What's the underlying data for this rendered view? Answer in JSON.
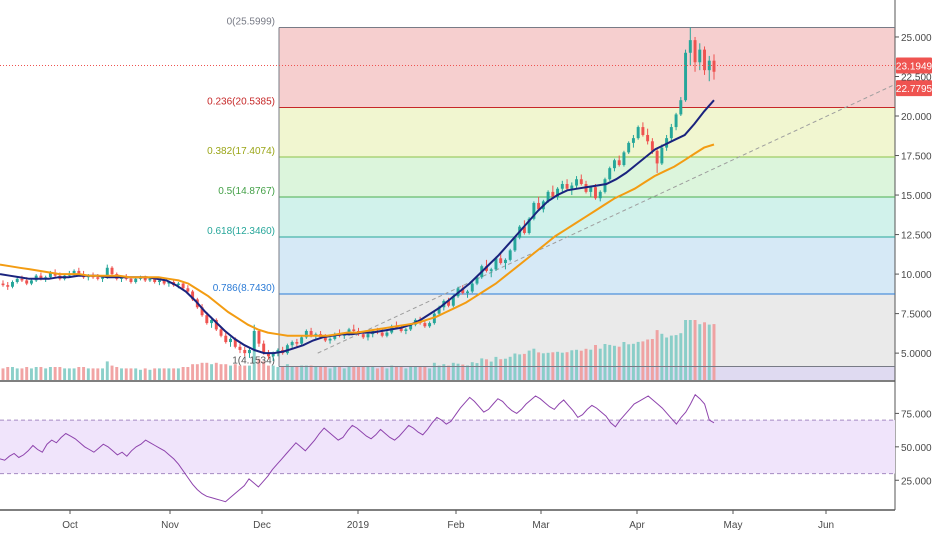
{
  "chart_data": [
    {
      "type": "candlestick",
      "instrument": "price",
      "y_axis": {
        "ticks": [
          "25.0000",
          "22.5000",
          "20.0000",
          "17.5000",
          "15.0000",
          "12.5000",
          "10.0000",
          "7.5000",
          "5.0000"
        ],
        "tick_values": [
          25,
          22.5,
          20,
          17.5,
          15,
          12.5,
          10,
          7.5,
          5
        ],
        "range": [
          3.3,
          26.2
        ]
      },
      "x_axis": {
        "labels": [
          "Oct",
          "Nov",
          "Dec",
          "2019",
          "Feb",
          "Mar",
          "Apr",
          "May",
          "Jun"
        ]
      },
      "price_tags": [
        {
          "text": "23.1949",
          "value": 23.1949,
          "color": "#ef5350"
        },
        {
          "text": "22.7795",
          "value": 22.7795,
          "color": "#ef5350"
        }
      ],
      "fibonacci": {
        "levels": [
          {
            "label": "0(25.5999)",
            "ratio": 0,
            "price": 25.5999,
            "line_color": "#787b86",
            "fill_color": "#f4c7c7",
            "label_color": "#787b86"
          },
          {
            "label": "0.236(20.5385)",
            "ratio": 0.236,
            "price": 20.5385,
            "line_color": "#c62828",
            "fill_color": "#eef4c8",
            "label_color": "#c62828"
          },
          {
            "label": "0.382(17.4074)",
            "ratio": 0.382,
            "price": 17.4074,
            "line_color": "#8bc34a",
            "fill_color": "#d6f3d6",
            "label_color": "#9aa517"
          },
          {
            "label": "0.5(14.8767)",
            "ratio": 0.5,
            "price": 14.8767,
            "line_color": "#4caf50",
            "fill_color": "#c9f0e8",
            "label_color": "#43a047"
          },
          {
            "label": "0.618(12.3460)",
            "ratio": 0.618,
            "price": 12.346,
            "line_color": "#26a69a",
            "fill_color": "#cfe5f5",
            "label_color": "#26a69a"
          },
          {
            "label": "0.786(8.7430)",
            "ratio": 0.786,
            "price": 8.743,
            "line_color": "#2b7bd6",
            "fill_color": "#e6e6e6",
            "label_color": "#2b7bd6"
          },
          {
            "label": "1(4.1534)",
            "ratio": 1,
            "price": 4.1534,
            "line_color": "#787b86",
            "fill_color": "#d9d3ef",
            "label_color": "#555555"
          }
        ]
      },
      "candles": [
        [
          9.4,
          9.6,
          9.2,
          9.3
        ],
        [
          9.3,
          9.5,
          9.0,
          9.2
        ],
        [
          9.2,
          9.6,
          9.1,
          9.5
        ],
        [
          9.5,
          9.8,
          9.4,
          9.7
        ],
        [
          9.7,
          9.9,
          9.5,
          9.6
        ],
        [
          9.6,
          9.8,
          9.3,
          9.4
        ],
        [
          9.4,
          9.7,
          9.3,
          9.6
        ],
        [
          9.6,
          10.0,
          9.5,
          9.9
        ],
        [
          9.9,
          10.1,
          9.6,
          9.7
        ],
        [
          9.7,
          9.9,
          9.5,
          9.8
        ],
        [
          9.8,
          10.2,
          9.7,
          10.1
        ],
        [
          10.1,
          10.3,
          9.8,
          9.9
        ],
        [
          9.9,
          10.1,
          9.6,
          9.7
        ],
        [
          9.7,
          10.0,
          9.6,
          9.9
        ],
        [
          9.9,
          10.2,
          9.8,
          10.0
        ],
        [
          10.0,
          10.3,
          9.9,
          10.2
        ],
        [
          10.2,
          10.4,
          9.9,
          10.0
        ],
        [
          10.0,
          10.2,
          9.7,
          9.8
        ],
        [
          9.8,
          10.0,
          9.6,
          9.9
        ],
        [
          9.9,
          10.1,
          9.7,
          9.8
        ],
        [
          9.8,
          10.0,
          9.6,
          9.7
        ],
        [
          9.7,
          9.9,
          9.5,
          9.8
        ],
        [
          9.8,
          10.6,
          9.7,
          10.4
        ],
        [
          10.4,
          10.5,
          9.9,
          10.0
        ],
        [
          10.0,
          10.1,
          9.6,
          9.7
        ],
        [
          9.7,
          9.9,
          9.5,
          9.8
        ],
        [
          9.8,
          10.0,
          9.6,
          9.7
        ],
        [
          9.7,
          9.8,
          9.4,
          9.5
        ],
        [
          9.5,
          9.8,
          9.4,
          9.7
        ],
        [
          9.7,
          9.9,
          9.6,
          9.8
        ],
        [
          9.8,
          9.9,
          9.5,
          9.6
        ],
        [
          9.6,
          9.8,
          9.5,
          9.7
        ],
        [
          9.7,
          9.8,
          9.4,
          9.5
        ],
        [
          9.5,
          9.7,
          9.3,
          9.6
        ],
        [
          9.6,
          9.7,
          9.3,
          9.4
        ],
        [
          9.4,
          9.6,
          9.2,
          9.5
        ],
        [
          9.5,
          9.6,
          9.2,
          9.3
        ],
        [
          9.3,
          9.5,
          9.1,
          9.4
        ],
        [
          9.4,
          9.5,
          9.0,
          9.1
        ],
        [
          9.1,
          9.3,
          8.8,
          8.9
        ],
        [
          8.9,
          9.0,
          8.3,
          8.4
        ],
        [
          8.4,
          8.5,
          7.8,
          7.9
        ],
        [
          7.9,
          8.1,
          7.3,
          7.4
        ],
        [
          7.4,
          7.6,
          6.8,
          6.9
        ],
        [
          6.9,
          7.3,
          6.6,
          7.1
        ],
        [
          7.1,
          7.2,
          6.4,
          6.5
        ],
        [
          6.5,
          6.7,
          6.0,
          6.1
        ],
        [
          6.1,
          6.3,
          5.6,
          5.7
        ],
        [
          5.7,
          6.0,
          5.4,
          5.9
        ],
        [
          5.9,
          6.0,
          5.3,
          5.4
        ],
        [
          5.4,
          5.6,
          5.0,
          5.2
        ],
        [
          5.2,
          5.4,
          4.8,
          5.0
        ],
        [
          5.0,
          5.3,
          4.7,
          5.2
        ],
        [
          5.2,
          6.8,
          5.1,
          6.4
        ],
        [
          6.4,
          6.5,
          5.4,
          5.6
        ],
        [
          5.6,
          5.8,
          4.9,
          5.0
        ],
        [
          5.0,
          5.2,
          4.6,
          4.8
        ],
        [
          4.8,
          5.1,
          4.5,
          5.0
        ],
        [
          5.0,
          5.3,
          4.8,
          5.2
        ],
        [
          5.2,
          5.4,
          4.9,
          5.0
        ],
        [
          5.0,
          5.6,
          4.9,
          5.5
        ],
        [
          5.5,
          5.8,
          5.3,
          5.7
        ],
        [
          5.7,
          5.9,
          5.4,
          5.6
        ],
        [
          5.6,
          6.1,
          5.5,
          6.0
        ],
        [
          6.0,
          6.5,
          5.9,
          6.4
        ],
        [
          6.4,
          6.6,
          6.0,
          6.1
        ],
        [
          6.1,
          6.3,
          5.8,
          6.2
        ],
        [
          6.2,
          6.4,
          5.9,
          6.0
        ],
        [
          6.0,
          6.2,
          5.7,
          5.8
        ],
        [
          5.8,
          6.0,
          5.6,
          5.9
        ],
        [
          5.9,
          6.3,
          5.8,
          6.2
        ],
        [
          6.2,
          6.5,
          6.0,
          6.1
        ],
        [
          6.1,
          6.3,
          5.9,
          6.2
        ],
        [
          6.2,
          6.6,
          6.1,
          6.5
        ],
        [
          6.5,
          6.8,
          6.3,
          6.4
        ],
        [
          6.4,
          6.6,
          6.1,
          6.2
        ],
        [
          6.2,
          6.4,
          5.9,
          6.0
        ],
        [
          6.0,
          6.3,
          5.8,
          6.2
        ],
        [
          6.2,
          6.5,
          6.0,
          6.4
        ],
        [
          6.4,
          6.6,
          6.2,
          6.3
        ],
        [
          6.3,
          6.5,
          6.0,
          6.1
        ],
        [
          6.1,
          6.4,
          6.0,
          6.3
        ],
        [
          6.3,
          6.8,
          6.2,
          6.7
        ],
        [
          6.7,
          7.0,
          6.5,
          6.6
        ],
        [
          6.6,
          6.8,
          6.3,
          6.4
        ],
        [
          6.4,
          6.6,
          6.2,
          6.5
        ],
        [
          6.5,
          6.9,
          6.4,
          6.8
        ],
        [
          6.8,
          7.2,
          6.7,
          7.1
        ],
        [
          7.1,
          7.3,
          6.8,
          6.9
        ],
        [
          6.9,
          7.1,
          6.6,
          6.7
        ],
        [
          6.7,
          7.0,
          6.6,
          6.9
        ],
        [
          6.9,
          7.6,
          6.8,
          7.5
        ],
        [
          7.5,
          8.0,
          7.4,
          7.9
        ],
        [
          7.9,
          8.4,
          7.7,
          8.3
        ],
        [
          8.3,
          8.5,
          7.9,
          8.0
        ],
        [
          8.0,
          8.7,
          7.9,
          8.6
        ],
        [
          8.6,
          9.2,
          8.5,
          9.1
        ],
        [
          9.1,
          9.3,
          8.7,
          8.8
        ],
        [
          8.8,
          9.0,
          8.5,
          8.9
        ],
        [
          8.9,
          9.5,
          8.8,
          9.4
        ],
        [
          9.4,
          9.9,
          9.3,
          9.8
        ],
        [
          9.8,
          10.6,
          9.7,
          10.5
        ],
        [
          10.5,
          10.9,
          10.1,
          10.2
        ],
        [
          10.2,
          10.4,
          9.8,
          10.3
        ],
        [
          10.3,
          11.1,
          10.2,
          11.0
        ],
        [
          11.0,
          11.3,
          10.6,
          10.7
        ],
        [
          10.7,
          11.0,
          10.3,
          10.9
        ],
        [
          10.9,
          11.6,
          10.8,
          11.5
        ],
        [
          11.5,
          12.4,
          11.4,
          12.3
        ],
        [
          12.3,
          13.1,
          12.2,
          13.0
        ],
        [
          13.0,
          13.4,
          12.5,
          12.6
        ],
        [
          12.6,
          13.6,
          12.5,
          13.5
        ],
        [
          13.5,
          14.6,
          13.4,
          14.5
        ],
        [
          14.5,
          14.9,
          14.0,
          14.1
        ],
        [
          14.1,
          14.7,
          13.9,
          14.6
        ],
        [
          14.6,
          15.3,
          14.5,
          15.2
        ],
        [
          15.2,
          15.6,
          14.8,
          14.9
        ],
        [
          14.9,
          15.5,
          14.7,
          15.4
        ],
        [
          15.4,
          15.9,
          15.2,
          15.7
        ],
        [
          15.7,
          16.0,
          15.3,
          15.4
        ],
        [
          15.4,
          15.8,
          15.0,
          15.6
        ],
        [
          15.6,
          16.2,
          15.4,
          16.0
        ],
        [
          16.0,
          16.3,
          15.6,
          15.7
        ],
        [
          15.7,
          15.9,
          15.1,
          15.2
        ],
        [
          15.2,
          15.6,
          14.9,
          15.5
        ],
        [
          15.5,
          15.7,
          14.7,
          14.8
        ],
        [
          14.8,
          15.3,
          14.6,
          15.2
        ],
        [
          15.2,
          16.1,
          15.1,
          16.0
        ],
        [
          16.0,
          16.8,
          15.9,
          16.7
        ],
        [
          16.7,
          17.3,
          16.5,
          17.2
        ],
        [
          17.2,
          17.5,
          16.8,
          16.9
        ],
        [
          16.9,
          17.8,
          16.8,
          17.7
        ],
        [
          17.7,
          18.4,
          17.6,
          18.3
        ],
        [
          18.3,
          18.8,
          18.0,
          18.6
        ],
        [
          18.6,
          19.4,
          18.5,
          19.3
        ],
        [
          19.3,
          19.6,
          18.7,
          18.8
        ],
        [
          18.8,
          19.2,
          18.2,
          18.4
        ],
        [
          18.4,
          18.6,
          17.6,
          17.8
        ],
        [
          17.8,
          18.0,
          16.4,
          17.0
        ],
        [
          17.0,
          18.2,
          16.9,
          18.0
        ],
        [
          18.0,
          18.8,
          17.8,
          18.6
        ],
        [
          18.6,
          19.5,
          18.4,
          19.3
        ],
        [
          19.3,
          20.2,
          19.1,
          20.1
        ],
        [
          20.1,
          21.2,
          20.0,
          21.0
        ],
        [
          21.0,
          24.2,
          20.9,
          24.0
        ],
        [
          24.0,
          25.6,
          23.2,
          24.8
        ],
        [
          24.8,
          25.0,
          22.8,
          23.4
        ],
        [
          23.4,
          24.6,
          22.9,
          24.2
        ],
        [
          24.2,
          24.4,
          22.6,
          22.9
        ],
        [
          22.9,
          23.8,
          22.2,
          23.5
        ],
        [
          23.5,
          23.9,
          22.3,
          22.8
        ]
      ],
      "ema_fast": [
        10.0,
        9.9,
        9.8,
        9.7,
        9.7,
        9.7,
        9.8,
        9.8,
        9.9,
        9.9,
        9.9,
        9.8,
        9.8,
        9.8,
        9.8,
        9.8,
        9.7,
        9.6,
        9.3,
        8.9,
        8.3,
        7.6,
        7.0,
        6.4,
        5.9,
        5.5,
        5.2,
        5.0,
        5.0,
        5.1,
        5.3,
        5.5,
        5.8,
        6.0,
        6.1,
        6.2,
        6.2,
        6.3,
        6.3,
        6.4,
        6.5,
        6.6,
        6.8,
        7.1,
        7.5,
        7.9,
        8.4,
        8.9,
        9.4,
        10.0,
        10.6,
        11.2,
        11.9,
        12.6,
        13.3,
        14.0,
        14.6,
        15.0,
        15.3,
        15.4,
        15.5,
        15.6,
        15.7,
        16.0,
        16.4,
        16.9,
        17.4,
        17.9,
        18.2,
        18.5,
        18.8,
        19.5,
        20.3,
        21.0
      ],
      "ema_slow": [
        10.6,
        10.5,
        10.4,
        10.3,
        10.2,
        10.1,
        10.0,
        10.0,
        10.0,
        9.9,
        9.9,
        9.9,
        9.9,
        9.8,
        9.8,
        9.8,
        9.8,
        9.7,
        9.6,
        9.4,
        9.0,
        8.6,
        8.1,
        7.6,
        7.2,
        6.8,
        6.5,
        6.3,
        6.2,
        6.1,
        6.1,
        6.1,
        6.1,
        6.1,
        6.2,
        6.3,
        6.3,
        6.4,
        6.5,
        6.6,
        6.7,
        6.8,
        6.9,
        7.1,
        7.3,
        7.6,
        7.9,
        8.2,
        8.6,
        9.0,
        9.4,
        9.9,
        10.4,
        10.9,
        11.4,
        11.9,
        12.4,
        12.8,
        13.2,
        13.6,
        14.0,
        14.4,
        14.8,
        15.1,
        15.4,
        15.8,
        16.2,
        16.5,
        16.8,
        17.2,
        17.6,
        18.0,
        18.2
      ],
      "trend_line": {
        "from": [
          0.355,
          5.0
        ],
        "to": [
          1.0,
          22.0
        ]
      },
      "volume_colors": {
        "up": "#80cbc4",
        "down": "#ef9a9a"
      }
    },
    {
      "type": "line",
      "indicator": "RSI",
      "y_axis": {
        "ticks": [
          "75.0000",
          "50.0000",
          "25.0000"
        ],
        "tick_values": [
          75,
          50,
          25
        ],
        "range": [
          5,
          94
        ]
      },
      "band": {
        "upper": 70,
        "lower": 30
      },
      "values": [
        41,
        40,
        43,
        45,
        42,
        44,
        47,
        51,
        48,
        46,
        52,
        55,
        53,
        57,
        60,
        58,
        56,
        53,
        50,
        48,
        46,
        49,
        52,
        50,
        47,
        44,
        46,
        43,
        47,
        50,
        52,
        55,
        53,
        51,
        49,
        47,
        44,
        41,
        37,
        32,
        27,
        22,
        18,
        15,
        13,
        12,
        11,
        10,
        9,
        12,
        15,
        18,
        21,
        26,
        23,
        20,
        24,
        28,
        33,
        37,
        41,
        45,
        49,
        53,
        50,
        47,
        51,
        55,
        60,
        64,
        61,
        58,
        55,
        57,
        62,
        66,
        64,
        61,
        58,
        56,
        59,
        63,
        60,
        57,
        55,
        58,
        62,
        66,
        64,
        61,
        59,
        63,
        68,
        72,
        70,
        67,
        69,
        74,
        79,
        83,
        87,
        84,
        80,
        76,
        78,
        82,
        86,
        84,
        80,
        77,
        75,
        78,
        82,
        85,
        88,
        86,
        83,
        80,
        78,
        82,
        85,
        81,
        77,
        72,
        74,
        78,
        81,
        79,
        76,
        73,
        68,
        65,
        70,
        74,
        78,
        82,
        84,
        86,
        88,
        85,
        82,
        79,
        75,
        71,
        67,
        72,
        76,
        82,
        89,
        86,
        82,
        70,
        68
      ]
    }
  ]
}
